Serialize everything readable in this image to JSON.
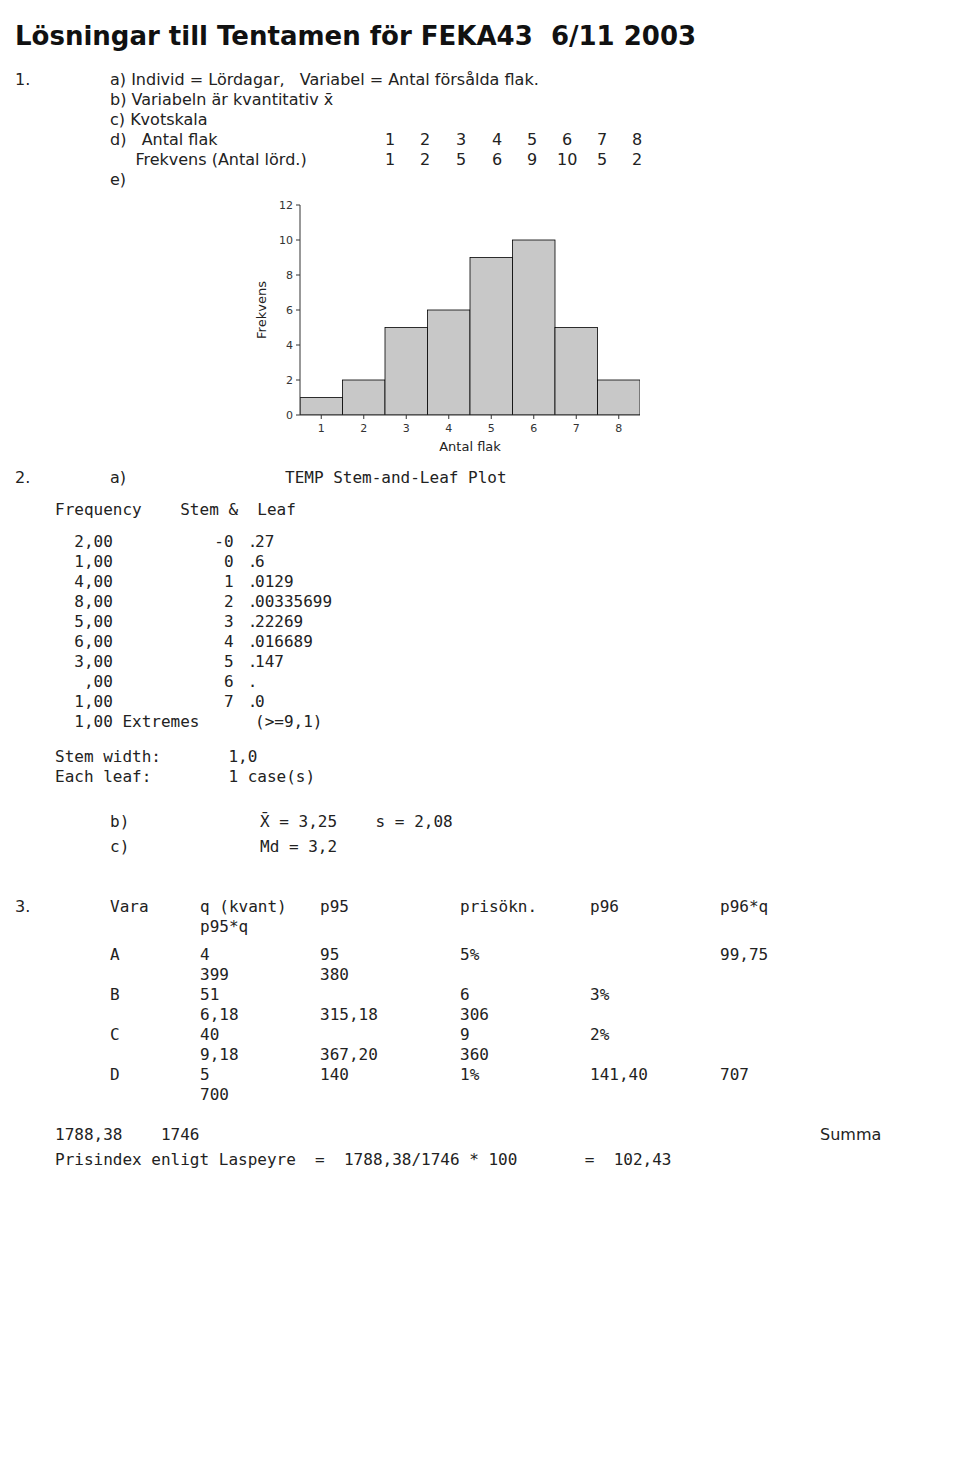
{
  "chart_data": {
    "type": "bar",
    "title": "Lösningar till Tentamen för FEKA43  6/11 2003",
    "categories": [
      "1",
      "2",
      "3",
      "4",
      "5",
      "6",
      "7",
      "8"
    ],
    "values": [
      1,
      2,
      5,
      6,
      9,
      10,
      5,
      2
    ],
    "color": "#c8c8c8",
    "xlabel": "Antal flak",
    "ylabel": "Frekvens",
    "ylim": [
      0,
      12
    ],
    "yticks": [
      0,
      2,
      4,
      6,
      8,
      10,
      12
    ],
    "grid": false,
    "annotations": [
      [
        "1.",
        "a) Individ = Lördagar,   Variabel = Antal försålda flak."
      ],
      [
        "b) Variabeln är kvantitativ x̄"
      ],
      [
        "c) Kvotskala"
      ],
      [
        "d)   Antal flak",
        "1",
        "2",
        "3",
        "4",
        "5",
        "6",
        "7",
        "8"
      ],
      [
        "     Frekvens (Antal lörd.)",
        "1",
        "2",
        "5",
        "6",
        "9",
        "10",
        "5",
        "2"
      ],
      [
        "e)"
      ],
      [
        "2.",
        "a)",
        "TEMP Stem-and-Leaf Plot"
      ],
      [
        "Frequency    Stem &  Leaf"
      ],
      [
        "  2,00",
        "  -0",
        " . ",
        "27"
      ],
      [
        "  1,00",
        "   0",
        " . ",
        "6"
      ],
      [
        "  4,00",
        "   1",
        " . ",
        "0129"
      ],
      [
        "  8,00",
        "   2",
        " . ",
        "00335699"
      ],
      [
        "  5,00",
        "   3",
        " . ",
        "22269"
      ],
      [
        "  6,00",
        "   4",
        " . ",
        "016689"
      ],
      [
        "  3,00",
        "   5",
        " . ",
        "147"
      ],
      [
        "   ,00",
        "   6",
        " . ",
        null
      ],
      [
        "  1,00",
        "   7",
        " . ",
        "0"
      ],
      [
        "  1,00 Extremes",
        null,
        null,
        "(>=9,1)"
      ],
      [
        "Stem width:       1,0"
      ],
      [
        "Each leaf:        1 case(s)"
      ],
      [
        "b)",
        "X̄ = 3,25    s = 2,08"
      ],
      [
        "c)",
        "Md = 3,2"
      ],
      [
        "3.",
        "Vara",
        "q (kvant)",
        "p95",
        "prisökn.",
        "p96",
        "p96*q"
      ],
      [
        "p95*q"
      ],
      [
        "A",
        "4",
        "95",
        "5%",
        null,
        "99,75"
      ],
      [
        null,
        "399",
        "380",
        null,
        null,
        null
      ],
      [
        "B",
        "51",
        null,
        "6",
        "3%",
        null
      ],
      [
        null,
        "6,18",
        "315,18",
        "306",
        null,
        null
      ],
      [
        "C",
        "40",
        null,
        "9",
        "2%",
        null
      ],
      [
        null,
        "9,18",
        "367,20",
        "360",
        null,
        null
      ],
      [
        "D",
        "5",
        "140",
        "1%",
        "141,40",
        "707"
      ],
      [
        null,
        "700",
        null,
        null,
        null,
        null
      ],
      [
        "1788,38    1746",
        "Summa"
      ],
      [
        "Prisindex enligt Laspeyre  =  1788,38/1746 * 100       =  102,43"
      ]
    ]
  }
}
